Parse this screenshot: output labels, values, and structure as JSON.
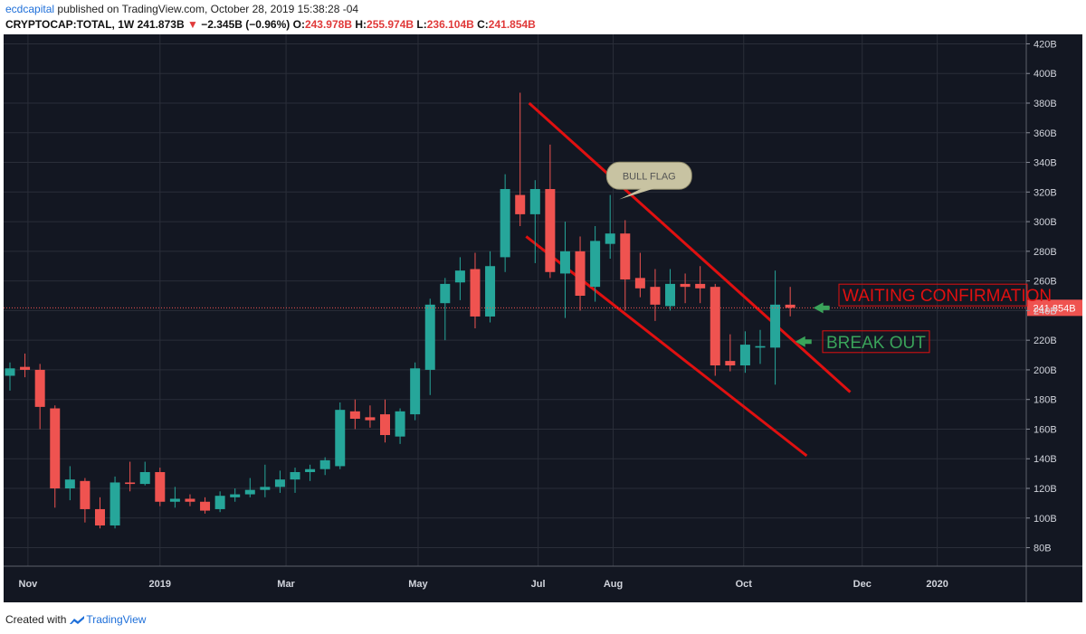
{
  "header": {
    "user": "ecdcapital",
    "published": "published on TradingView.com, October 28, 2019 15:38:28 -04",
    "symbol": "CRYPTOCAP:TOTAL, 1W",
    "last": "241.873B",
    "change": "−2.345B (−0.96%)",
    "o_label": "O:",
    "o": "243.978B",
    "h_label": "H:",
    "h": "255.974B",
    "l_label": "L:",
    "l": "236.104B",
    "c_label": "C:",
    "c": "241.854B"
  },
  "footer": {
    "created": "Created with",
    "brand": "TradingView"
  },
  "colors": {
    "up": "#26a69a",
    "down": "#ef5350",
    "bg": "#131722",
    "grid": "#2a2e39",
    "trend": "#e01010",
    "arrow": "#3aa35a"
  },
  "chart_data": {
    "type": "candlestick",
    "y_unit": "B",
    "ylim": [
      60,
      425
    ],
    "y_ticks": [
      80,
      100,
      120,
      140,
      160,
      180,
      200,
      220,
      240,
      260,
      280,
      300,
      320,
      340,
      360,
      380,
      400,
      420
    ],
    "y_tick_labels": [
      "80B",
      "100B",
      "120B",
      "140B",
      "160B",
      "180B",
      "200B",
      "220B",
      "240B",
      "260B",
      "280B",
      "300B",
      "320B",
      "340B",
      "360B",
      "380B",
      "400B",
      "420B"
    ],
    "x_ticks": [
      {
        "label": "Nov",
        "index": 1.2
      },
      {
        "label": "2019",
        "index": 10.0
      },
      {
        "label": "Mar",
        "index": 18.4
      },
      {
        "label": "May",
        "index": 27.2
      },
      {
        "label": "Jul",
        "index": 35.2
      },
      {
        "label": "Aug",
        "index": 40.2
      },
      {
        "label": "Oct",
        "index": 48.9
      },
      {
        "label": "Dec",
        "index": 56.8
      },
      {
        "label": "2020",
        "index": 61.8
      }
    ],
    "price_tag": "241.854B",
    "price_level": 241.854,
    "candles": [
      {
        "o": 196,
        "h": 205,
        "l": 186,
        "c": 201
      },
      {
        "o": 202,
        "h": 211,
        "l": 195,
        "c": 200
      },
      {
        "o": 200,
        "h": 204,
        "l": 160,
        "c": 175
      },
      {
        "o": 174,
        "h": 176,
        "l": 107,
        "c": 120
      },
      {
        "o": 120,
        "h": 135,
        "l": 112,
        "c": 126
      },
      {
        "o": 125,
        "h": 127,
        "l": 97,
        "c": 106
      },
      {
        "o": 106,
        "h": 114,
        "l": 93,
        "c": 95
      },
      {
        "o": 95,
        "h": 128,
        "l": 93,
        "c": 124
      },
      {
        "o": 124,
        "h": 138,
        "l": 118,
        "c": 123
      },
      {
        "o": 123,
        "h": 138,
        "l": 122,
        "c": 131
      },
      {
        "o": 131,
        "h": 134,
        "l": 108,
        "c": 111
      },
      {
        "o": 111,
        "h": 121,
        "l": 107,
        "c": 113
      },
      {
        "o": 113,
        "h": 116,
        "l": 108,
        "c": 111
      },
      {
        "o": 111,
        "h": 114,
        "l": 103,
        "c": 105
      },
      {
        "o": 106,
        "h": 118,
        "l": 104,
        "c": 115
      },
      {
        "o": 114,
        "h": 120,
        "l": 111,
        "c": 116
      },
      {
        "o": 116,
        "h": 127,
        "l": 114,
        "c": 119
      },
      {
        "o": 119,
        "h": 136,
        "l": 114,
        "c": 121
      },
      {
        "o": 121,
        "h": 132,
        "l": 117,
        "c": 126
      },
      {
        "o": 126,
        "h": 134,
        "l": 117,
        "c": 131
      },
      {
        "o": 131,
        "h": 136,
        "l": 125,
        "c": 133
      },
      {
        "o": 133,
        "h": 141,
        "l": 129,
        "c": 139
      },
      {
        "o": 135,
        "h": 178,
        "l": 133,
        "c": 173
      },
      {
        "o": 172,
        "h": 180,
        "l": 160,
        "c": 167
      },
      {
        "o": 168,
        "h": 176,
        "l": 161,
        "c": 166
      },
      {
        "o": 170,
        "h": 180,
        "l": 151,
        "c": 156
      },
      {
        "o": 155,
        "h": 174,
        "l": 150,
        "c": 172
      },
      {
        "o": 170,
        "h": 205,
        "l": 166,
        "c": 201
      },
      {
        "o": 200,
        "h": 248,
        "l": 183,
        "c": 244
      },
      {
        "o": 245,
        "h": 262,
        "l": 220,
        "c": 258
      },
      {
        "o": 259,
        "h": 276,
        "l": 247,
        "c": 267
      },
      {
        "o": 268,
        "h": 279,
        "l": 228,
        "c": 236
      },
      {
        "o": 236,
        "h": 280,
        "l": 232,
        "c": 270
      },
      {
        "o": 276,
        "h": 332,
        "l": 266,
        "c": 322
      },
      {
        "o": 318,
        "h": 387,
        "l": 297,
        "c": 305
      },
      {
        "o": 305,
        "h": 328,
        "l": 272,
        "c": 322
      },
      {
        "o": 322,
        "h": 352,
        "l": 262,
        "c": 266
      },
      {
        "o": 265,
        "h": 300,
        "l": 235,
        "c": 280
      },
      {
        "o": 280,
        "h": 290,
        "l": 240,
        "c": 250
      },
      {
        "o": 256,
        "h": 297,
        "l": 246,
        "c": 287
      },
      {
        "o": 285,
        "h": 318,
        "l": 275,
        "c": 292
      },
      {
        "o": 292,
        "h": 301,
        "l": 240,
        "c": 261
      },
      {
        "o": 262,
        "h": 279,
        "l": 249,
        "c": 255
      },
      {
        "o": 256,
        "h": 268,
        "l": 233,
        "c": 244
      },
      {
        "o": 243,
        "h": 268,
        "l": 240,
        "c": 258
      },
      {
        "o": 258,
        "h": 265,
        "l": 245,
        "c": 256
      },
      {
        "o": 258,
        "h": 270,
        "l": 245,
        "c": 255
      },
      {
        "o": 256,
        "h": 258,
        "l": 196,
        "c": 203
      },
      {
        "o": 206,
        "h": 224,
        "l": 199,
        "c": 203
      },
      {
        "o": 203,
        "h": 226,
        "l": 198,
        "c": 217
      },
      {
        "o": 215,
        "h": 227,
        "l": 204,
        "c": 216
      },
      {
        "o": 215,
        "h": 267,
        "l": 190,
        "c": 244
      },
      {
        "o": 243.978,
        "h": 255.974,
        "l": 236.104,
        "c": 241.854
      }
    ],
    "trendlines": [
      {
        "from": [
          34.6,
          380
        ],
        "to": [
          56.0,
          185
        ]
      },
      {
        "from": [
          34.4,
          290
        ],
        "to": [
          53.1,
          142
        ]
      }
    ],
    "annotations": {
      "bull_flag": "BULL FLAG",
      "waiting": "WAITING CONFIRMATION",
      "break_out": "BREAK OUT"
    }
  }
}
